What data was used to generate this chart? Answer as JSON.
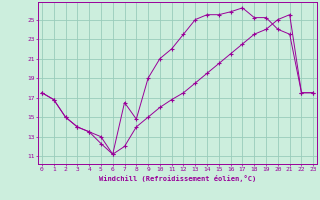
{
  "xlabel": "Windchill (Refroidissement éolien,°C)",
  "background_color": "#cceedd",
  "grid_color": "#99ccbb",
  "line_color": "#990099",
  "x_ticks": [
    0,
    1,
    2,
    3,
    4,
    5,
    6,
    7,
    8,
    9,
    10,
    11,
    12,
    13,
    14,
    15,
    16,
    17,
    18,
    19,
    20,
    21,
    22,
    23
  ],
  "y_ticks": [
    11,
    13,
    15,
    17,
    19,
    21,
    23,
    25
  ],
  "xlim": [
    -0.3,
    23.3
  ],
  "ylim": [
    10.2,
    26.8
  ],
  "series1_x": [
    0,
    1,
    2,
    3,
    4,
    5,
    6,
    7,
    8,
    9,
    10,
    11,
    12,
    13,
    14,
    15,
    16,
    17,
    18,
    19,
    20,
    21,
    22,
    23
  ],
  "series1_y": [
    17.5,
    16.8,
    15.0,
    14.0,
    13.5,
    12.3,
    11.2,
    16.5,
    14.8,
    19.0,
    21.0,
    22.0,
    23.5,
    25.0,
    25.5,
    25.5,
    25.8,
    26.2,
    25.2,
    25.2,
    24.0,
    23.5,
    17.5,
    17.5
  ],
  "series2_x": [
    0,
    1,
    2,
    3,
    4,
    5,
    6,
    7,
    8,
    9,
    10,
    11,
    12,
    13,
    14,
    15,
    16,
    17,
    18,
    19,
    20,
    21,
    22,
    23
  ],
  "series2_y": [
    17.5,
    16.8,
    15.0,
    14.0,
    13.5,
    13.0,
    11.2,
    12.0,
    14.0,
    15.0,
    16.0,
    16.8,
    17.5,
    18.5,
    19.5,
    20.5,
    21.5,
    22.5,
    23.5,
    24.0,
    25.0,
    25.5,
    17.5,
    17.5
  ]
}
